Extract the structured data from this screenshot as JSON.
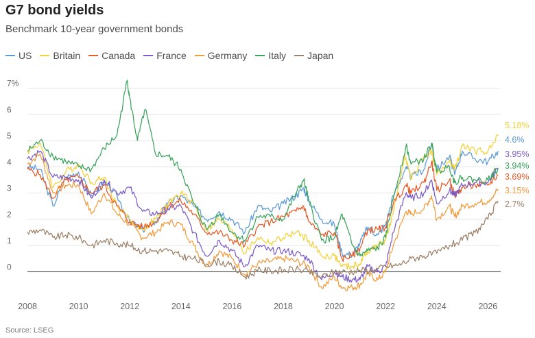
{
  "title": "G7 bond yields",
  "subtitle": "Benchmark 10-year government bonds",
  "source": "Source: LSEG",
  "chart_data": {
    "type": "line",
    "title": "G7 bond yields",
    "subtitle": "Benchmark 10-year government bonds",
    "xlabel": "",
    "ylabel": "",
    "xlim": [
      2008,
      2026.5
    ],
    "ylim": [
      -0.8,
      7.3
    ],
    "x_ticks": [
      "2008",
      "2010",
      "2012",
      "2014",
      "2016",
      "2018",
      "2020",
      "2022",
      "2024",
      "2026"
    ],
    "y_ticks": [
      "7%",
      "6",
      "5",
      "4",
      "3",
      "2",
      "1",
      "0"
    ],
    "grid": "horizontal",
    "legend_position": "top-left",
    "zero_line": true,
    "series": [
      {
        "name": "US",
        "color": "#5b9bd5",
        "end_label": "4.6%",
        "points": [
          [
            2008,
            4.0
          ],
          [
            2008.5,
            3.9
          ],
          [
            2009,
            2.5
          ],
          [
            2009.5,
            3.6
          ],
          [
            2010,
            3.8
          ],
          [
            2010.5,
            2.9
          ],
          [
            2011,
            3.4
          ],
          [
            2011.5,
            2.9
          ],
          [
            2012,
            1.9
          ],
          [
            2012.5,
            1.6
          ],
          [
            2013,
            1.9
          ],
          [
            2013.5,
            2.6
          ],
          [
            2014,
            2.9
          ],
          [
            2014.5,
            2.5
          ],
          [
            2015,
            2.0
          ],
          [
            2015.5,
            2.3
          ],
          [
            2016,
            2.0
          ],
          [
            2016.5,
            1.5
          ],
          [
            2017,
            2.5
          ],
          [
            2017.5,
            2.3
          ],
          [
            2018,
            2.6
          ],
          [
            2018.5,
            2.9
          ],
          [
            2018.8,
            3.2
          ],
          [
            2019,
            2.7
          ],
          [
            2019.5,
            2.0
          ],
          [
            2020,
            1.8
          ],
          [
            2020.3,
            0.7
          ],
          [
            2020.7,
            0.65
          ],
          [
            2021,
            1.1
          ],
          [
            2021.3,
            1.7
          ],
          [
            2021.7,
            1.4
          ],
          [
            2022,
            1.8
          ],
          [
            2022.3,
            2.9
          ],
          [
            2022.8,
            4.0
          ],
          [
            2023,
            3.6
          ],
          [
            2023.5,
            3.9
          ],
          [
            2023.8,
            4.9
          ],
          [
            2024,
            3.9
          ],
          [
            2024.5,
            4.4
          ],
          [
            2024.7,
            3.7
          ],
          [
            2025,
            4.6
          ],
          [
            2025.5,
            4.3
          ],
          [
            2026,
            4.2
          ],
          [
            2026.4,
            4.6
          ]
        ]
      },
      {
        "name": "Britain",
        "color": "#f2d13b",
        "end_label": "5.18%",
        "points": [
          [
            2008,
            4.6
          ],
          [
            2008.5,
            4.9
          ],
          [
            2009,
            3.2
          ],
          [
            2009.5,
            3.8
          ],
          [
            2010,
            4.1
          ],
          [
            2010.5,
            3.4
          ],
          [
            2011,
            3.6
          ],
          [
            2011.5,
            2.5
          ],
          [
            2012,
            2.0
          ],
          [
            2012.5,
            1.6
          ],
          [
            2013,
            2.0
          ],
          [
            2013.5,
            2.6
          ],
          [
            2014,
            3.0
          ],
          [
            2014.5,
            2.6
          ],
          [
            2015,
            1.6
          ],
          [
            2015.5,
            2.0
          ],
          [
            2016,
            1.6
          ],
          [
            2016.5,
            0.7
          ],
          [
            2017,
            1.3
          ],
          [
            2017.5,
            1.1
          ],
          [
            2018,
            1.3
          ],
          [
            2018.5,
            1.5
          ],
          [
            2019,
            1.2
          ],
          [
            2019.5,
            0.6
          ],
          [
            2020,
            0.6
          ],
          [
            2020.3,
            0.2
          ],
          [
            2020.7,
            0.2
          ],
          [
            2021,
            0.3
          ],
          [
            2021.3,
            0.8
          ],
          [
            2021.7,
            1.0
          ],
          [
            2022,
            1.2
          ],
          [
            2022.3,
            2.2
          ],
          [
            2022.75,
            4.5
          ],
          [
            2023,
            3.5
          ],
          [
            2023.5,
            4.4
          ],
          [
            2023.8,
            4.6
          ],
          [
            2024,
            3.7
          ],
          [
            2024.5,
            4.2
          ],
          [
            2024.7,
            3.9
          ],
          [
            2025,
            4.8
          ],
          [
            2025.5,
            4.6
          ],
          [
            2026,
            4.6
          ],
          [
            2026.4,
            5.18
          ]
        ]
      },
      {
        "name": "Canada",
        "color": "#e65a28",
        "end_label": "3.69%",
        "points": [
          [
            2008,
            3.9
          ],
          [
            2008.5,
            3.7
          ],
          [
            2009,
            2.8
          ],
          [
            2009.5,
            3.5
          ],
          [
            2010,
            3.6
          ],
          [
            2010.5,
            3.0
          ],
          [
            2011,
            3.3
          ],
          [
            2011.5,
            2.5
          ],
          [
            2012,
            1.9
          ],
          [
            2012.5,
            1.7
          ],
          [
            2013,
            1.9
          ],
          [
            2013.5,
            2.5
          ],
          [
            2014,
            2.7
          ],
          [
            2014.5,
            2.2
          ],
          [
            2015,
            1.5
          ],
          [
            2015.5,
            1.5
          ],
          [
            2016,
            1.2
          ],
          [
            2016.5,
            1.0
          ],
          [
            2017,
            1.7
          ],
          [
            2017.5,
            1.9
          ],
          [
            2018,
            2.1
          ],
          [
            2018.5,
            2.3
          ],
          [
            2018.8,
            2.5
          ],
          [
            2019,
            1.9
          ],
          [
            2019.5,
            1.4
          ],
          [
            2020,
            1.5
          ],
          [
            2020.3,
            0.5
          ],
          [
            2020.7,
            0.6
          ],
          [
            2021,
            0.9
          ],
          [
            2021.3,
            1.6
          ],
          [
            2021.7,
            1.6
          ],
          [
            2022,
            1.7
          ],
          [
            2022.3,
            2.6
          ],
          [
            2022.8,
            3.3
          ],
          [
            2023,
            3.0
          ],
          [
            2023.5,
            3.4
          ],
          [
            2023.8,
            4.2
          ],
          [
            2024,
            3.1
          ],
          [
            2024.5,
            3.5
          ],
          [
            2024.7,
            2.9
          ],
          [
            2025,
            3.2
          ],
          [
            2025.5,
            3.3
          ],
          [
            2026,
            3.3
          ],
          [
            2026.4,
            3.69
          ]
        ]
      },
      {
        "name": "France",
        "color": "#7b5bc6",
        "end_label": "3.95%",
        "points": [
          [
            2008,
            4.3
          ],
          [
            2008.5,
            4.6
          ],
          [
            2009,
            3.6
          ],
          [
            2009.5,
            3.6
          ],
          [
            2010,
            3.5
          ],
          [
            2010.5,
            2.8
          ],
          [
            2011,
            3.5
          ],
          [
            2011.5,
            3.0
          ],
          [
            2012,
            3.2
          ],
          [
            2012.5,
            2.3
          ],
          [
            2013,
            2.2
          ],
          [
            2013.5,
            2.4
          ],
          [
            2014,
            2.5
          ],
          [
            2014.5,
            1.5
          ],
          [
            2015,
            0.6
          ],
          [
            2015.5,
            1.2
          ],
          [
            2016,
            0.8
          ],
          [
            2016.5,
            0.2
          ],
          [
            2017,
            1.0
          ],
          [
            2017.5,
            0.8
          ],
          [
            2018,
            0.8
          ],
          [
            2018.5,
            0.7
          ],
          [
            2019,
            0.5
          ],
          [
            2019.5,
            -0.3
          ],
          [
            2020,
            0.0
          ],
          [
            2020.3,
            -0.2
          ],
          [
            2020.7,
            -0.3
          ],
          [
            2021,
            -0.3
          ],
          [
            2021.3,
            0.2
          ],
          [
            2021.7,
            0.0
          ],
          [
            2022,
            0.2
          ],
          [
            2022.3,
            1.5
          ],
          [
            2022.8,
            3.0
          ],
          [
            2023,
            2.8
          ],
          [
            2023.5,
            3.0
          ],
          [
            2023.8,
            3.5
          ],
          [
            2024,
            2.6
          ],
          [
            2024.5,
            3.1
          ],
          [
            2024.7,
            2.9
          ],
          [
            2025,
            3.3
          ],
          [
            2025.5,
            3.4
          ],
          [
            2026,
            3.4
          ],
          [
            2026.4,
            3.95
          ]
        ]
      },
      {
        "name": "Germany",
        "color": "#f39c3d",
        "end_label": "3.15%",
        "points": [
          [
            2008,
            4.1
          ],
          [
            2008.5,
            4.5
          ],
          [
            2009,
            3.0
          ],
          [
            2009.5,
            3.3
          ],
          [
            2010,
            3.3
          ],
          [
            2010.5,
            2.2
          ],
          [
            2011,
            3.0
          ],
          [
            2011.5,
            2.2
          ],
          [
            2012,
            1.8
          ],
          [
            2012.5,
            1.3
          ],
          [
            2013,
            1.5
          ],
          [
            2013.5,
            1.9
          ],
          [
            2014,
            1.8
          ],
          [
            2014.5,
            1.0
          ],
          [
            2015,
            0.2
          ],
          [
            2015.5,
            0.8
          ],
          [
            2016,
            0.5
          ],
          [
            2016.5,
            -0.1
          ],
          [
            2017,
            0.3
          ],
          [
            2017.5,
            0.4
          ],
          [
            2018,
            0.5
          ],
          [
            2018.5,
            0.4
          ],
          [
            2019,
            0.2
          ],
          [
            2019.5,
            -0.6
          ],
          [
            2020,
            -0.2
          ],
          [
            2020.3,
            -0.6
          ],
          [
            2020.7,
            -0.6
          ],
          [
            2021,
            -0.5
          ],
          [
            2021.3,
            -0.1
          ],
          [
            2021.7,
            -0.3
          ],
          [
            2022,
            0.0
          ],
          [
            2022.3,
            1.0
          ],
          [
            2022.8,
            2.3
          ],
          [
            2023,
            2.2
          ],
          [
            2023.5,
            2.4
          ],
          [
            2023.8,
            2.9
          ],
          [
            2024,
            2.0
          ],
          [
            2024.5,
            2.5
          ],
          [
            2024.7,
            2.1
          ],
          [
            2025,
            2.5
          ],
          [
            2025.5,
            2.6
          ],
          [
            2026,
            2.7
          ],
          [
            2026.4,
            3.15
          ]
        ]
      },
      {
        "name": "Italy",
        "color": "#3aa35c",
        "end_label": "3.94%",
        "points": [
          [
            2008,
            4.6
          ],
          [
            2008.5,
            5.0
          ],
          [
            2009,
            4.4
          ],
          [
            2009.5,
            4.2
          ],
          [
            2010,
            4.0
          ],
          [
            2010.5,
            3.9
          ],
          [
            2011,
            4.7
          ],
          [
            2011.5,
            5.2
          ],
          [
            2011.9,
            7.3
          ],
          [
            2012,
            6.6
          ],
          [
            2012.3,
            5.0
          ],
          [
            2012.6,
            6.2
          ],
          [
            2013,
            4.5
          ],
          [
            2013.5,
            4.4
          ],
          [
            2014,
            3.9
          ],
          [
            2014.5,
            2.6
          ],
          [
            2015,
            1.6
          ],
          [
            2015.5,
            2.2
          ],
          [
            2016,
            1.5
          ],
          [
            2016.5,
            1.2
          ],
          [
            2017,
            2.1
          ],
          [
            2017.5,
            2.1
          ],
          [
            2018,
            2.0
          ],
          [
            2018.5,
            3.0
          ],
          [
            2018.8,
            3.5
          ],
          [
            2019,
            2.7
          ],
          [
            2019.5,
            1.2
          ],
          [
            2020,
            1.3
          ],
          [
            2020.3,
            2.2
          ],
          [
            2020.7,
            1.0
          ],
          [
            2021,
            0.6
          ],
          [
            2021.3,
            0.8
          ],
          [
            2021.7,
            0.9
          ],
          [
            2022,
            1.3
          ],
          [
            2022.3,
            2.8
          ],
          [
            2022.8,
            4.8
          ],
          [
            2023,
            4.1
          ],
          [
            2023.5,
            4.3
          ],
          [
            2023.8,
            4.9
          ],
          [
            2024,
            3.8
          ],
          [
            2024.5,
            4.0
          ],
          [
            2024.7,
            3.4
          ],
          [
            2025,
            3.6
          ],
          [
            2025.5,
            3.5
          ],
          [
            2026,
            3.5
          ],
          [
            2026.4,
            3.94
          ]
        ]
      },
      {
        "name": "Japan",
        "color": "#9c8068",
        "end_label": "2.7%",
        "points": [
          [
            2008,
            1.5
          ],
          [
            2008.5,
            1.6
          ],
          [
            2009,
            1.3
          ],
          [
            2009.5,
            1.4
          ],
          [
            2010,
            1.3
          ],
          [
            2010.5,
            1.0
          ],
          [
            2011,
            1.2
          ],
          [
            2011.5,
            1.1
          ],
          [
            2012,
            1.0
          ],
          [
            2012.5,
            0.8
          ],
          [
            2013,
            0.8
          ],
          [
            2013.5,
            0.8
          ],
          [
            2014,
            0.6
          ],
          [
            2014.5,
            0.5
          ],
          [
            2015,
            0.3
          ],
          [
            2015.5,
            0.4
          ],
          [
            2016,
            0.2
          ],
          [
            2016.5,
            -0.2
          ],
          [
            2017,
            0.05
          ],
          [
            2017.5,
            0.05
          ],
          [
            2018,
            0.05
          ],
          [
            2018.5,
            0.1
          ],
          [
            2019,
            0.0
          ],
          [
            2019.5,
            -0.2
          ],
          [
            2020,
            0.0
          ],
          [
            2020.5,
            0.0
          ],
          [
            2021,
            0.05
          ],
          [
            2021.5,
            0.05
          ],
          [
            2022,
            0.2
          ],
          [
            2022.5,
            0.25
          ],
          [
            2023,
            0.5
          ],
          [
            2023.5,
            0.6
          ],
          [
            2024,
            0.7
          ],
          [
            2024.5,
            1.0
          ],
          [
            2025,
            1.2
          ],
          [
            2025.5,
            1.5
          ],
          [
            2026,
            2.0
          ],
          [
            2026.4,
            2.7
          ]
        ]
      }
    ]
  }
}
